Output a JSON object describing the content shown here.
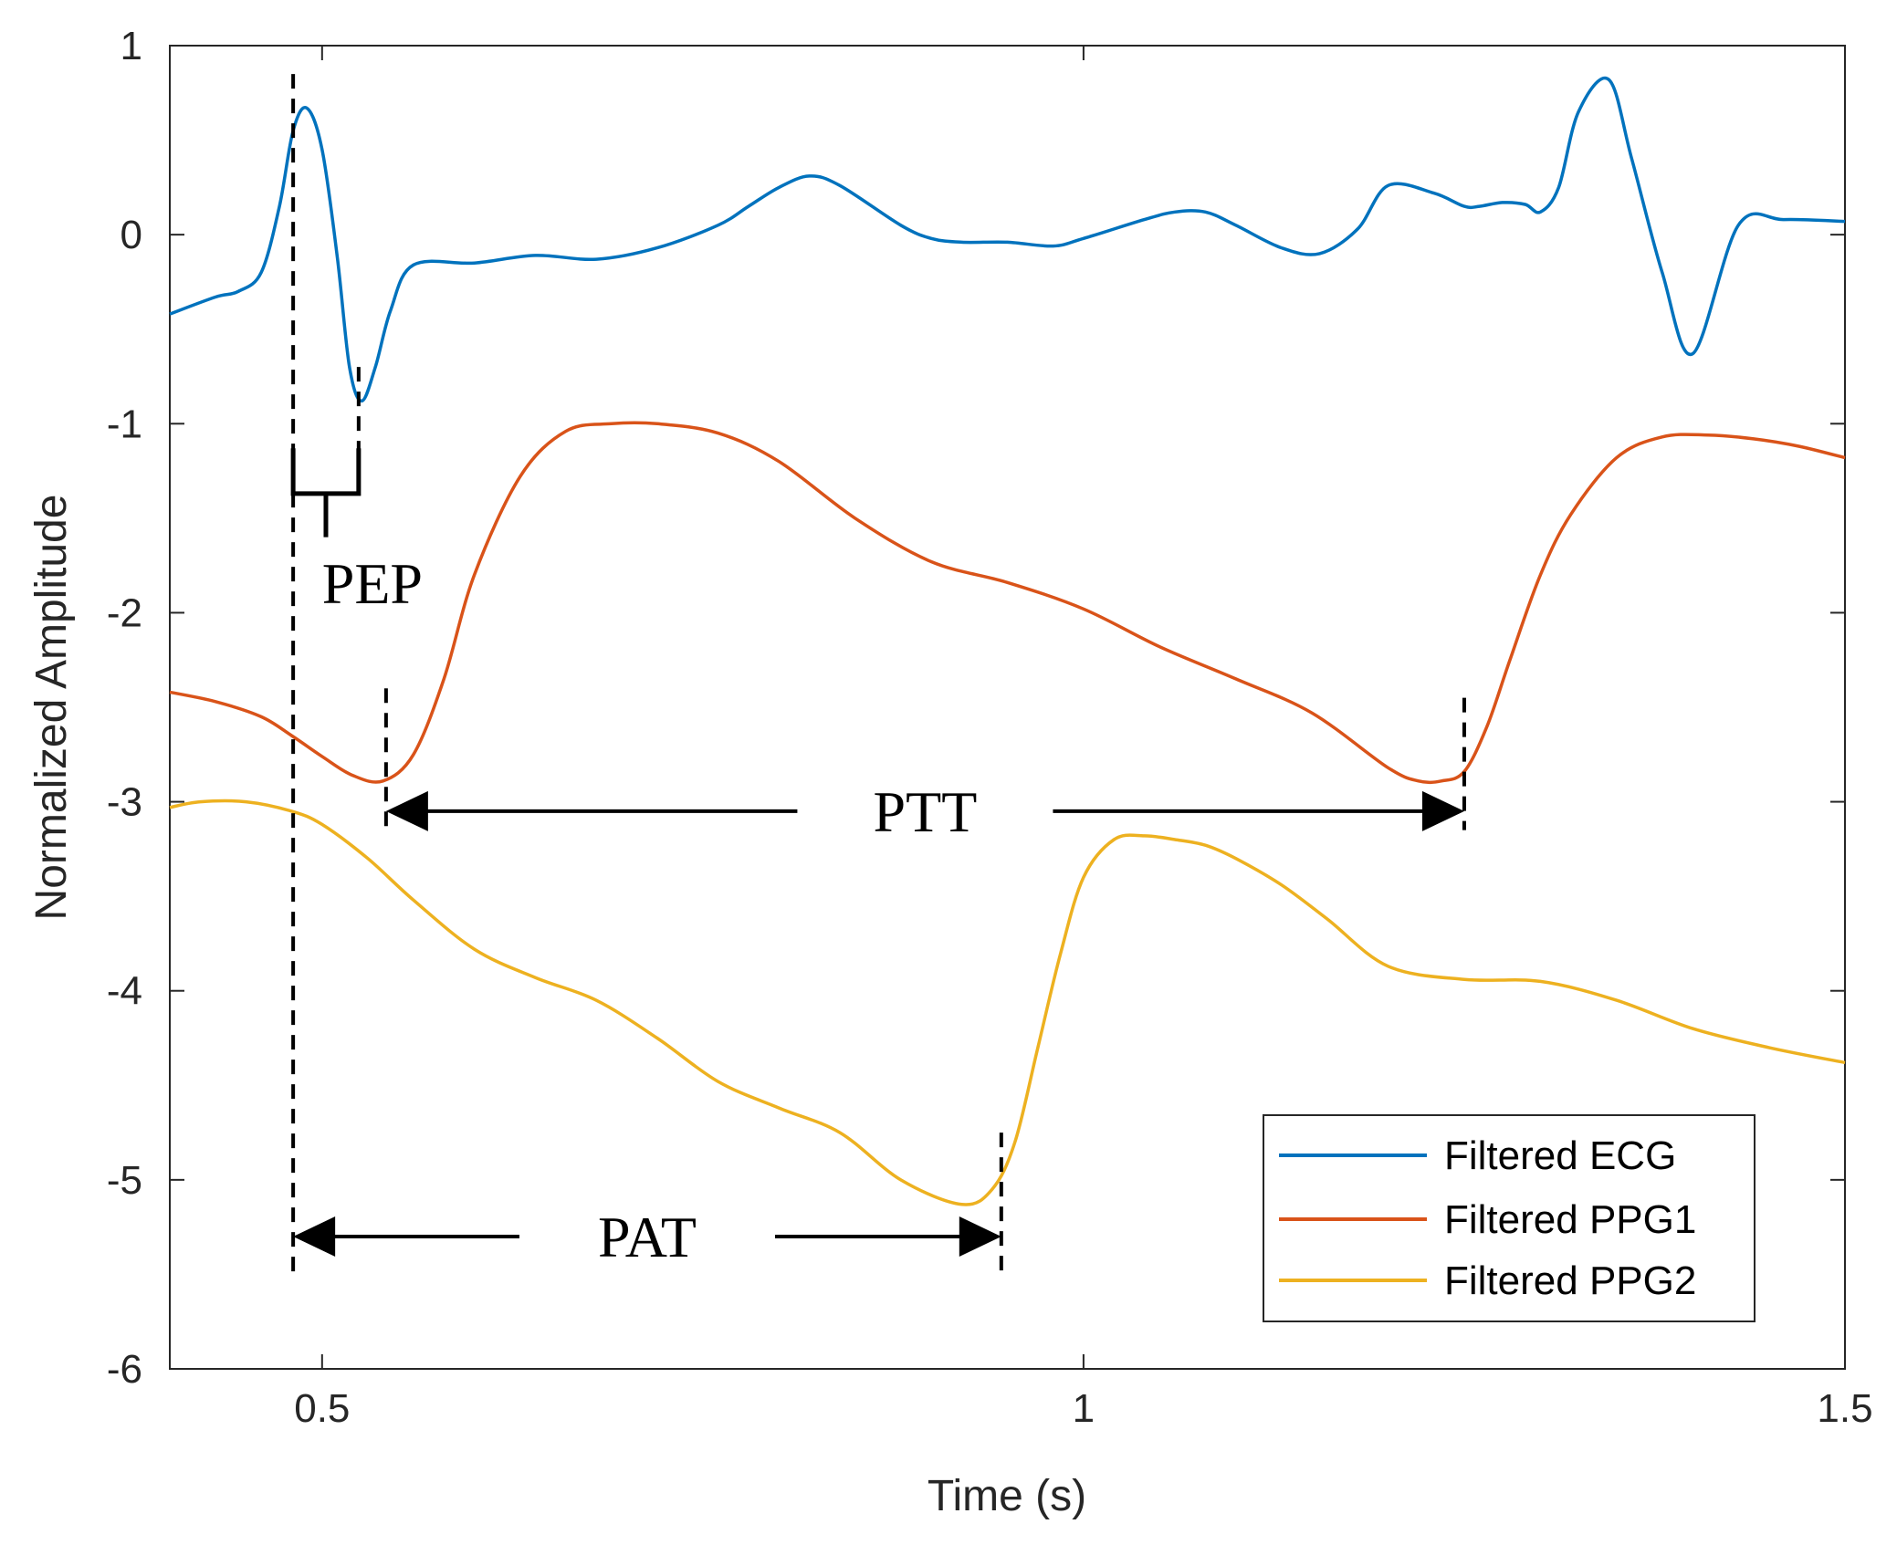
{
  "chart_data": {
    "type": "line",
    "title": "",
    "xlabel": "Time (s)",
    "ylabel": "Normalized Amplitude",
    "xlim": [
      0.4,
      1.5
    ],
    "ylim": [
      -6,
      1
    ],
    "xticks": [
      0.5,
      1,
      1.5
    ],
    "xtick_labels": [
      "0.5",
      "1",
      "1.5"
    ],
    "yticks": [
      1,
      0,
      -1,
      -2,
      -3,
      -4,
      -5,
      -6
    ],
    "ytick_labels": [
      "1",
      "0",
      "-1",
      "-2",
      "-3",
      "-4",
      "-5",
      "-6"
    ],
    "grid": false,
    "legend_position": "bottom-right",
    "series": [
      {
        "name": "Filtered ECG",
        "color": "#0072BD",
        "x": [
          0.4,
          0.43,
          0.445,
          0.46,
          0.472,
          0.481,
          0.49,
          0.5,
          0.51,
          0.518,
          0.526,
          0.535,
          0.545,
          0.56,
          0.6,
          0.64,
          0.68,
          0.72,
          0.76,
          0.78,
          0.8,
          0.82,
          0.84,
          0.88,
          0.9,
          0.92,
          0.95,
          0.98,
          1.0,
          1.04,
          1.06,
          1.08,
          1.1,
          1.13,
          1.155,
          1.18,
          1.2,
          1.23,
          1.25,
          1.26,
          1.275,
          1.29,
          1.3,
          1.312,
          1.325,
          1.345,
          1.36,
          1.38,
          1.4,
          1.43,
          1.46,
          1.5
        ],
        "y": [
          -0.42,
          -0.33,
          -0.3,
          -0.2,
          0.15,
          0.55,
          0.67,
          0.45,
          -0.12,
          -0.7,
          -0.88,
          -0.7,
          -0.4,
          -0.16,
          -0.15,
          -0.11,
          -0.13,
          -0.07,
          0.05,
          0.15,
          0.25,
          0.31,
          0.26,
          0.05,
          -0.02,
          -0.04,
          -0.04,
          -0.06,
          -0.02,
          0.08,
          0.12,
          0.12,
          0.05,
          -0.07,
          -0.1,
          0.03,
          0.26,
          0.22,
          0.15,
          0.15,
          0.17,
          0.16,
          0.12,
          0.25,
          0.65,
          0.82,
          0.4,
          -0.2,
          -0.63,
          0.05,
          0.08,
          0.07
        ]
      },
      {
        "name": "Filtered PPG1",
        "color": "#D95319",
        "x": [
          0.4,
          0.43,
          0.46,
          0.48,
          0.5,
          0.52,
          0.54,
          0.56,
          0.58,
          0.6,
          0.63,
          0.66,
          0.69,
          0.72,
          0.76,
          0.8,
          0.85,
          0.9,
          0.95,
          1.0,
          1.05,
          1.1,
          1.15,
          1.2,
          1.22,
          1.235,
          1.25,
          1.265,
          1.28,
          1.3,
          1.32,
          1.35,
          1.38,
          1.41,
          1.44,
          1.47,
          1.5
        ],
        "y": [
          -2.42,
          -2.47,
          -2.55,
          -2.65,
          -2.76,
          -2.86,
          -2.89,
          -2.75,
          -2.35,
          -1.8,
          -1.28,
          -1.04,
          -1.0,
          -1.0,
          -1.05,
          -1.2,
          -1.5,
          -1.73,
          -1.84,
          -1.98,
          -2.18,
          -2.35,
          -2.53,
          -2.82,
          -2.89,
          -2.89,
          -2.84,
          -2.6,
          -2.25,
          -1.8,
          -1.48,
          -1.18,
          -1.07,
          -1.06,
          -1.08,
          -1.12,
          -1.18
        ]
      },
      {
        "name": "Filtered PPG2",
        "color": "#EDB120",
        "x": [
          0.4,
          0.42,
          0.45,
          0.48,
          0.5,
          0.53,
          0.56,
          0.6,
          0.64,
          0.68,
          0.72,
          0.76,
          0.8,
          0.84,
          0.88,
          0.92,
          0.94,
          0.955,
          0.97,
          0.985,
          1.0,
          1.02,
          1.04,
          1.06,
          1.08,
          1.1,
          1.13,
          1.16,
          1.2,
          1.25,
          1.3,
          1.35,
          1.4,
          1.45,
          1.5
        ],
        "y": [
          -3.03,
          -3.0,
          -3.0,
          -3.05,
          -3.12,
          -3.3,
          -3.52,
          -3.78,
          -3.93,
          -4.05,
          -4.25,
          -4.48,
          -4.62,
          -4.75,
          -5.0,
          -5.13,
          -5.05,
          -4.8,
          -4.3,
          -3.8,
          -3.4,
          -3.2,
          -3.18,
          -3.2,
          -3.23,
          -3.3,
          -3.44,
          -3.62,
          -3.87,
          -3.94,
          -3.95,
          -4.05,
          -4.2,
          -4.3,
          -4.38
        ]
      }
    ],
    "annotations": [
      {
        "label": "PEP",
        "from": 0.481,
        "to": 0.524,
        "text_x": 0.533,
        "text_y": -1.95
      },
      {
        "label": "PTT",
        "from": 0.542,
        "to": 1.25,
        "y": -3.05
      },
      {
        "label": "PAT",
        "from": 0.481,
        "to": 0.946,
        "y": -5.3
      }
    ],
    "marker_lines": [
      {
        "x": 0.481,
        "y1": 0.85,
        "y2": -5.5
      },
      {
        "x": 0.524,
        "y1": -0.7,
        "y2": -1.18
      },
      {
        "x": 0.542,
        "y1": -2.4,
        "y2": -3.15
      },
      {
        "x": 1.25,
        "y1": -2.45,
        "y2": -3.15
      },
      {
        "x": 0.946,
        "y1": -4.75,
        "y2": -5.5
      }
    ]
  }
}
